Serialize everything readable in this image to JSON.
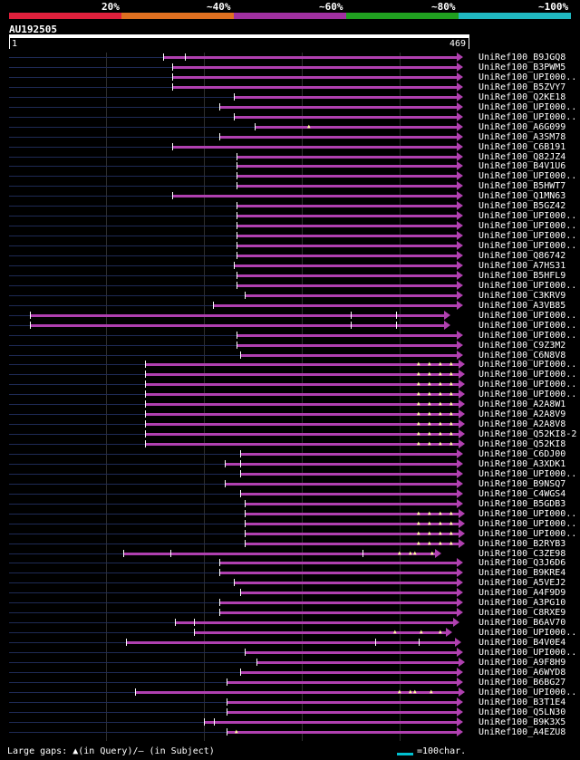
{
  "legend": {
    "items": [
      {
        "label": "20%",
        "color": "#e0203c"
      },
      {
        "label": "~40%",
        "color": "#e07020"
      },
      {
        "label": "~60%",
        "color": "#a030a0"
      },
      {
        "label": "~80%",
        "color": "#20a020"
      },
      {
        "label": "~100%",
        "color": "#20b8c0"
      }
    ]
  },
  "query": {
    "name": "AU192505",
    "start": "1",
    "end": "469"
  },
  "hit_color": "#b040b0",
  "rows": [
    {
      "label": "UniRef100_B9JGQ8",
      "start": 180,
      "end": 504,
      "ticks": [
        204
      ],
      "gaps": []
    },
    {
      "label": "UniRef100_B3PWM5",
      "start": 190,
      "end": 504,
      "ticks": [],
      "gaps": []
    },
    {
      "label": "UniRef100_UPI000..",
      "start": 190,
      "end": 504,
      "ticks": [],
      "gaps": []
    },
    {
      "label": "UniRef100_B5ZVY7",
      "start": 190,
      "end": 504,
      "ticks": [],
      "gaps": []
    },
    {
      "label": "UniRef100_Q2KE18",
      "start": 258,
      "end": 504,
      "ticks": [],
      "gaps": []
    },
    {
      "label": "UniRef100_UPI000..",
      "start": 242,
      "end": 504,
      "ticks": [],
      "gaps": []
    },
    {
      "label": "UniRef100_UPI000..",
      "start": 258,
      "end": 504,
      "ticks": [],
      "gaps": []
    },
    {
      "label": "UniRef100_A6G099",
      "start": 281,
      "end": 504,
      "ticks": [],
      "gaps": [
        341
      ]
    },
    {
      "label": "UniRef100_A3SM78",
      "start": 242,
      "end": 504,
      "ticks": [],
      "gaps": []
    },
    {
      "label": "UniRef100_C6B191",
      "start": 190,
      "end": 504,
      "ticks": [],
      "gaps": []
    },
    {
      "label": "UniRef100_Q82JZ4",
      "start": 261,
      "end": 504,
      "ticks": [],
      "gaps": []
    },
    {
      "label": "UniRef100_B4V1U6",
      "start": 261,
      "end": 504,
      "ticks": [],
      "gaps": []
    },
    {
      "label": "UniRef100_UPI000..",
      "start": 261,
      "end": 504,
      "ticks": [],
      "gaps": []
    },
    {
      "label": "UniRef100_B5HWT7",
      "start": 261,
      "end": 504,
      "ticks": [],
      "gaps": []
    },
    {
      "label": "UniRef100_Q1MN63",
      "start": 190,
      "end": 504,
      "ticks": [],
      "gaps": []
    },
    {
      "label": "UniRef100_B5GZ42",
      "start": 261,
      "end": 504,
      "ticks": [],
      "gaps": []
    },
    {
      "label": "UniRef100_UPI000..",
      "start": 261,
      "end": 504,
      "ticks": [],
      "gaps": []
    },
    {
      "label": "UniRef100_UPI000..",
      "start": 261,
      "end": 504,
      "ticks": [],
      "gaps": []
    },
    {
      "label": "UniRef100_UPI000..",
      "start": 261,
      "end": 504,
      "ticks": [],
      "gaps": []
    },
    {
      "label": "UniRef100_UPI000..",
      "start": 261,
      "end": 504,
      "ticks": [],
      "gaps": []
    },
    {
      "label": "UniRef100_Q86742",
      "start": 261,
      "end": 504,
      "ticks": [],
      "gaps": []
    },
    {
      "label": "UniRef100_A7HS31",
      "start": 258,
      "end": 504,
      "ticks": [],
      "gaps": []
    },
    {
      "label": "UniRef100_B5HFL9",
      "start": 261,
      "end": 504,
      "ticks": [],
      "gaps": []
    },
    {
      "label": "UniRef100_UPI000..",
      "start": 261,
      "end": 504,
      "ticks": [],
      "gaps": []
    },
    {
      "label": "UniRef100_C3KRV9",
      "start": 270,
      "end": 504,
      "ticks": [],
      "gaps": []
    },
    {
      "label": "UniRef100_A3VB85",
      "start": 235,
      "end": 504,
      "ticks": [],
      "gaps": []
    },
    {
      "label": "UniRef100_UPI000..",
      "start": 33,
      "end": 490,
      "ticks": [
        33,
        387,
        437
      ],
      "gaps": []
    },
    {
      "label": "UniRef100_UPI000..",
      "start": 33,
      "end": 490,
      "ticks": [
        33,
        387,
        437
      ],
      "gaps": []
    },
    {
      "label": "UniRef100_UPI000..",
      "start": 261,
      "end": 504,
      "ticks": [],
      "gaps": []
    },
    {
      "label": "UniRef100_C9Z3M2",
      "start": 261,
      "end": 504,
      "ticks": [],
      "gaps": []
    },
    {
      "label": "UniRef100_C6N8V8",
      "start": 265,
      "end": 504,
      "ticks": [],
      "gaps": []
    },
    {
      "label": "UniRef100_UPI000..",
      "start": 160,
      "end": 506,
      "ticks": [],
      "gaps": [
        462,
        474,
        486,
        498
      ]
    },
    {
      "label": "UniRef100_UPI000..",
      "start": 160,
      "end": 506,
      "ticks": [],
      "gaps": [
        462,
        474,
        486,
        498
      ]
    },
    {
      "label": "UniRef100_UPI000..",
      "start": 160,
      "end": 506,
      "ticks": [],
      "gaps": [
        462,
        474,
        486,
        498
      ]
    },
    {
      "label": "UniRef100_UPI000..",
      "start": 160,
      "end": 506,
      "ticks": [],
      "gaps": [
        462,
        474,
        486,
        498
      ]
    },
    {
      "label": "UniRef100_A2A8W1",
      "start": 160,
      "end": 506,
      "ticks": [],
      "gaps": [
        462,
        474,
        486,
        498
      ]
    },
    {
      "label": "UniRef100_A2A8V9",
      "start": 160,
      "end": 506,
      "ticks": [],
      "gaps": [
        462,
        474,
        486,
        498
      ]
    },
    {
      "label": "UniRef100_A2A8V8",
      "start": 160,
      "end": 506,
      "ticks": [],
      "gaps": [
        462,
        474,
        486,
        498
      ]
    },
    {
      "label": "UniRef100_Q52KI8-2",
      "start": 160,
      "end": 506,
      "ticks": [],
      "gaps": [
        462,
        474,
        486,
        498
      ]
    },
    {
      "label": "UniRef100_Q52KI8",
      "start": 160,
      "end": 506,
      "ticks": [],
      "gaps": [
        462,
        474,
        486,
        498
      ]
    },
    {
      "label": "UniRef100_C6DJ00",
      "start": 265,
      "end": 504,
      "ticks": [],
      "gaps": []
    },
    {
      "label": "UniRef100_A3XDK1",
      "start": 248,
      "end": 504,
      "ticks": [
        265
      ],
      "gaps": []
    },
    {
      "label": "UniRef100_UPI000..",
      "start": 265,
      "end": 504,
      "ticks": [],
      "gaps": []
    },
    {
      "label": "UniRef100_B9NSQ7",
      "start": 248,
      "end": 504,
      "ticks": [],
      "gaps": []
    },
    {
      "label": "UniRef100_C4WGS4",
      "start": 265,
      "end": 504,
      "ticks": [],
      "gaps": []
    },
    {
      "label": "UniRef100_B5GDB3",
      "start": 270,
      "end": 504,
      "ticks": [],
      "gaps": []
    },
    {
      "label": "UniRef100_UPI000..",
      "start": 270,
      "end": 506,
      "ticks": [],
      "gaps": [
        462,
        474,
        486,
        498
      ]
    },
    {
      "label": "UniRef100_UPI000..",
      "start": 270,
      "end": 506,
      "ticks": [],
      "gaps": [
        462,
        474,
        486,
        498
      ]
    },
    {
      "label": "UniRef100_UPI000..",
      "start": 270,
      "end": 506,
      "ticks": [],
      "gaps": [
        462,
        474,
        486,
        498
      ]
    },
    {
      "label": "UniRef100_B2RYB3",
      "start": 270,
      "end": 506,
      "ticks": [],
      "gaps": [
        462,
        474,
        486,
        498
      ]
    },
    {
      "label": "UniRef100_C3ZE98",
      "start": 136,
      "end": 480,
      "ticks": [
        136,
        188,
        400
      ],
      "gaps": [
        441,
        453,
        458,
        477
      ]
    },
    {
      "label": "UniRef100_Q3J6D6",
      "start": 242,
      "end": 504,
      "ticks": [],
      "gaps": []
    },
    {
      "label": "UniRef100_B9KRE4",
      "start": 242,
      "end": 504,
      "ticks": [],
      "gaps": []
    },
    {
      "label": "UniRef100_A5VEJ2",
      "start": 258,
      "end": 504,
      "ticks": [],
      "gaps": []
    },
    {
      "label": "UniRef100_A4F9D9",
      "start": 265,
      "end": 504,
      "ticks": [],
      "gaps": []
    },
    {
      "label": "UniRef100_A3PG10",
      "start": 242,
      "end": 504,
      "ticks": [],
      "gaps": []
    },
    {
      "label": "UniRef100_C8RXE9",
      "start": 242,
      "end": 504,
      "ticks": [],
      "gaps": []
    },
    {
      "label": "UniRef100_B6AV70",
      "start": 193,
      "end": 500,
      "ticks": [
        214
      ],
      "gaps": []
    },
    {
      "label": "UniRef100_UPI000..",
      "start": 214,
      "end": 492,
      "ticks": [],
      "gaps": [
        436,
        465,
        486
      ]
    },
    {
      "label": "UniRef100_B4V0E4",
      "start": 139,
      "end": 502,
      "ticks": [
        414,
        462
      ],
      "gaps": []
    },
    {
      "label": "UniRef100_UPI000..",
      "start": 270,
      "end": 504,
      "ticks": [],
      "gaps": []
    },
    {
      "label": "UniRef100_A9F8H9",
      "start": 283,
      "end": 506,
      "ticks": [],
      "gaps": []
    },
    {
      "label": "UniRef100_A6WYD8",
      "start": 265,
      "end": 504,
      "ticks": [],
      "gaps": []
    },
    {
      "label": "UniRef100_B6BG27",
      "start": 250,
      "end": 504,
      "ticks": [],
      "gaps": []
    },
    {
      "label": "UniRef100_UPI000..",
      "start": 149,
      "end": 506,
      "ticks": [],
      "gaps": [
        441,
        453,
        458,
        476
      ]
    },
    {
      "label": "UniRef100_B3T1E4",
      "start": 250,
      "end": 504,
      "ticks": [],
      "gaps": []
    },
    {
      "label": "UniRef100_Q5LN30",
      "start": 250,
      "end": 504,
      "ticks": [],
      "gaps": []
    },
    {
      "label": "UniRef100_B9K3X5",
      "start": 225,
      "end": 504,
      "ticks": [
        236
      ],
      "gaps": []
    },
    {
      "label": "UniRef100_A4EZU8",
      "start": 250,
      "end": 504,
      "ticks": [],
      "gaps": [
        261
      ]
    }
  ],
  "footer": {
    "left": "Large gaps: ▲(in Query)/– (in Subject)",
    "right": "=100char.",
    "scale_color": "#00c0d0"
  }
}
